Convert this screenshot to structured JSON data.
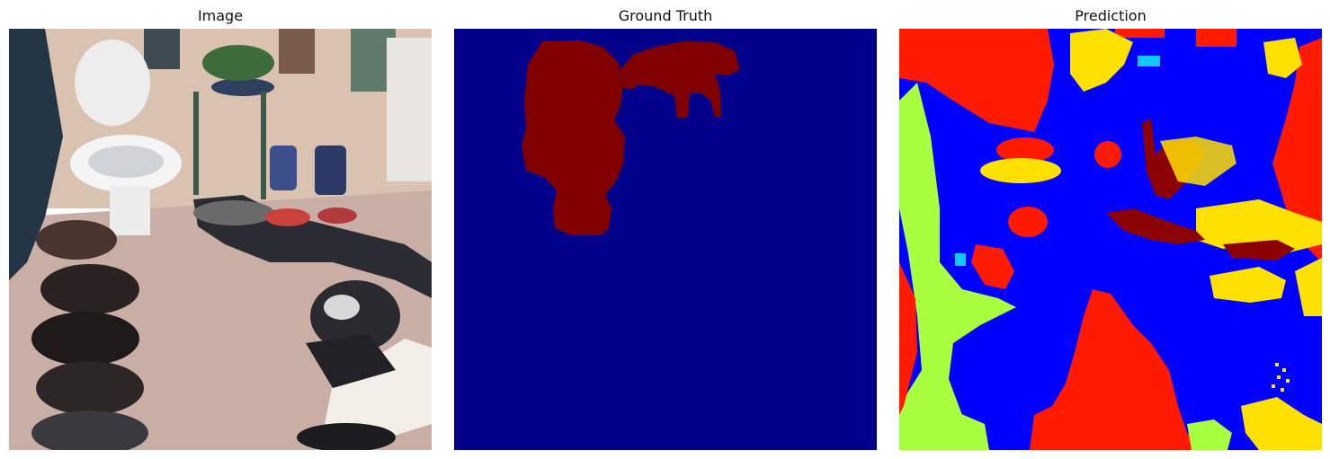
{
  "panels": [
    {
      "title": "Image"
    },
    {
      "title": "Ground Truth"
    },
    {
      "title": "Prediction"
    }
  ],
  "colors": {
    "background_class": "#00008b",
    "object_class": "#800000",
    "pred_blue": "#0000ff",
    "pred_red": "#ff1a00",
    "pred_yellow": "#ffe100",
    "pred_green": "#a8ff40",
    "pred_darkred": "#8b0000",
    "pred_cyan": "#14c8ff"
  }
}
